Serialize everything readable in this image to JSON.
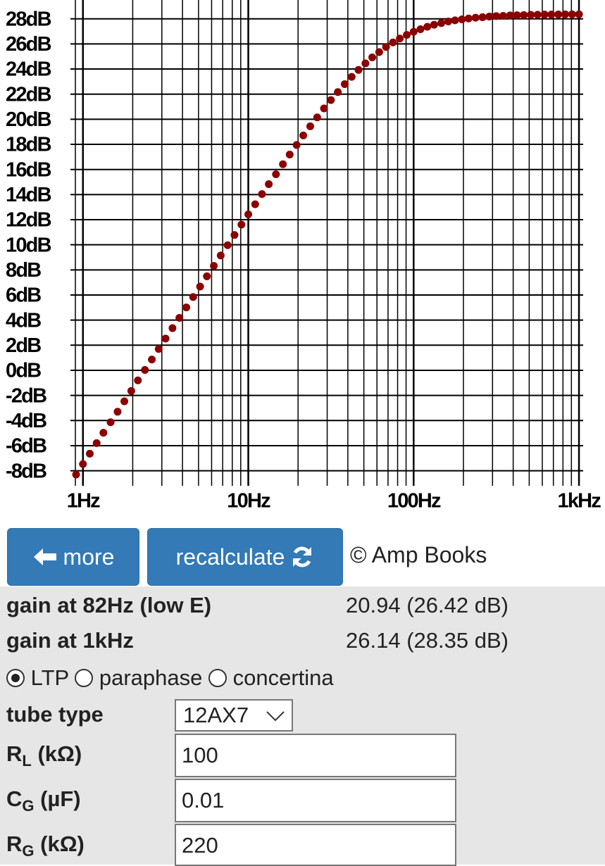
{
  "chart_data": {
    "type": "scatter",
    "xscale": "log",
    "color": "#8b0000",
    "grid": true,
    "minor_grid": true,
    "xlim": [
      0.84,
      1060
    ],
    "ylim": [
      -9.2,
      29.5
    ],
    "xticks": [
      {
        "value": 1,
        "label": "1Hz"
      },
      {
        "value": 10,
        "label": "10Hz"
      },
      {
        "value": 100,
        "label": "100Hz"
      },
      {
        "value": 1000,
        "label": "1kHz"
      }
    ],
    "yticks": [
      {
        "value": -8,
        "label": "-8dB"
      },
      {
        "value": -6,
        "label": "-6dB"
      },
      {
        "value": -4,
        "label": "-4dB"
      },
      {
        "value": -2,
        "label": "-2dB"
      },
      {
        "value": 0,
        "label": "0dB"
      },
      {
        "value": 2,
        "label": "2dB"
      },
      {
        "value": 4,
        "label": "4dB"
      },
      {
        "value": 6,
        "label": "6dB"
      },
      {
        "value": 8,
        "label": "8dB"
      },
      {
        "value": 10,
        "label": "10dB"
      },
      {
        "value": 12,
        "label": "12dB"
      },
      {
        "value": 14,
        "label": "14dB"
      },
      {
        "value": 16,
        "label": "16dB"
      },
      {
        "value": 18,
        "label": "18dB"
      },
      {
        "value": 20,
        "label": "20dB"
      },
      {
        "value": 22,
        "label": "22dB"
      },
      {
        "value": 24,
        "label": "24dB"
      },
      {
        "value": 26,
        "label": "26dB"
      },
      {
        "value": 28,
        "label": "28dB"
      }
    ],
    "x": [
      0.909,
      1,
      1.1,
      1.21,
      1.33,
      1.47,
      1.62,
      1.78,
      1.96,
      2.15,
      2.37,
      2.61,
      2.87,
      3.16,
      3.48,
      3.83,
      4.22,
      4.64,
      5.11,
      5.62,
      6.19,
      6.81,
      7.5,
      8.25,
      9.09,
      10,
      11,
      12.1,
      13.3,
      14.7,
      16.2,
      17.8,
      19.6,
      21.5,
      23.7,
      26.1,
      28.7,
      31.6,
      34.8,
      38.3,
      42.2,
      46.4,
      51.1,
      56.2,
      61.9,
      68.1,
      75,
      82.5,
      90.9,
      100,
      110,
      121,
      133,
      147,
      162,
      178,
      196,
      215,
      237,
      261,
      287,
      316,
      348,
      383,
      422,
      464,
      511,
      562,
      619,
      681,
      750,
      825,
      909,
      1000
    ],
    "values": [
      -8.3,
      -7.47,
      -6.64,
      -5.8,
      -4.97,
      -4.14,
      -3.3,
      -2.47,
      -1.64,
      -0.8,
      0.03,
      0.86,
      1.7,
      2.53,
      3.36,
      4.18,
      5.01,
      5.84,
      6.67,
      7.49,
      8.32,
      9.15,
      9.97,
      10.78,
      11.61,
      12.42,
      13.23,
      14.04,
      14.83,
      15.62,
      16.42,
      17.19,
      17.95,
      18.71,
      19.44,
      20.15,
      20.86,
      21.53,
      22.17,
      22.8,
      23.38,
      23.93,
      24.45,
      24.93,
      25.35,
      25.76,
      26.12,
      26.43,
      26.72,
      26.97,
      27.17,
      27.37,
      27.53,
      27.66,
      27.79,
      27.88,
      27.96,
      28.03,
      28.09,
      28.13,
      28.18,
      28.22,
      28.24,
      28.27,
      28.29,
      28.3,
      28.32,
      28.33,
      28.34,
      28.34,
      28.35,
      28.36,
      28.36,
      28.36
    ]
  },
  "controls": {
    "more": "more",
    "recalculate": "recalculate",
    "copyright": "© Amp Books"
  },
  "results": [
    {
      "label": "gain at 82Hz (low E)",
      "value": "20.94 (26.42 dB)"
    },
    {
      "label": "gain at 1kHz",
      "value": "26.14 (28.35 dB)"
    }
  ],
  "topology": {
    "options": [
      "LTP",
      "paraphase",
      "concertina"
    ],
    "selected": 0
  },
  "form": {
    "tube_type": {
      "label": "tube type",
      "value": "12AX7"
    },
    "fields": [
      {
        "symbol": "R",
        "sub": "L",
        "unit": "(kΩ)",
        "value": "100"
      },
      {
        "symbol": "C",
        "sub": "G",
        "unit": "(µF)",
        "value": "0.01"
      },
      {
        "symbol": "R",
        "sub": "G",
        "unit": "(kΩ)",
        "value": "220"
      }
    ]
  }
}
